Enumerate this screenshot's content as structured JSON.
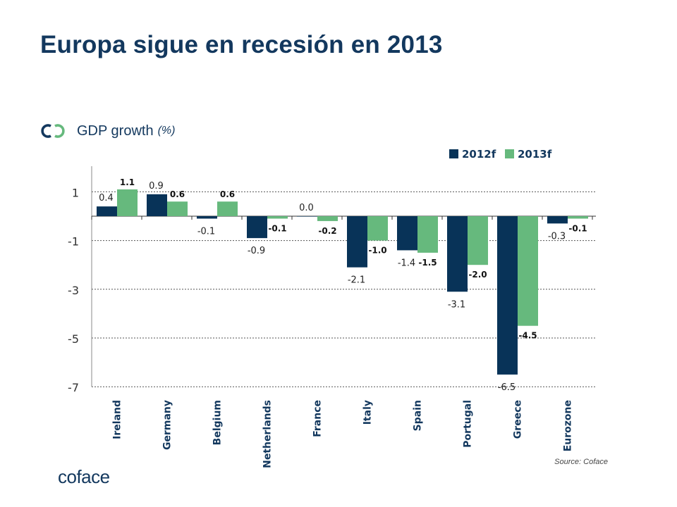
{
  "page": {
    "title": "Europa sigue en recesión en 2013",
    "subtitle": "GDP growth",
    "subtitle_unit": "(%)",
    "source": "Source: Coface",
    "logo_text": "coface"
  },
  "colors": {
    "title": "#13385e",
    "series_2012": "#083358",
    "series_2013": "#66b97d",
    "accent_icon_left": "#13385e",
    "accent_icon_right": "#66b97d"
  },
  "icons": {
    "subtitle_bullet": "coface-co-icon"
  },
  "chart_data": {
    "type": "bar",
    "title": "GDP growth (%)",
    "xlabel": "",
    "ylabel": "",
    "ylim": [
      -7,
      2.2
    ],
    "yticks": [
      1,
      -1,
      -3,
      -5,
      -7
    ],
    "grid": true,
    "legend_position": "top-right",
    "categories": [
      "Ireland",
      "Germany",
      "Belgium",
      "Netherlands",
      "France",
      "Italy",
      "Spain",
      "Portugal",
      "Greece",
      "Eurozone"
    ],
    "series": [
      {
        "name": "2012f",
        "color": "#083358",
        "values": [
          0.4,
          0.9,
          -0.1,
          -0.9,
          0.0,
          -2.1,
          -1.4,
          -3.1,
          -6.5,
          -0.3
        ],
        "labels": [
          "0.4",
          "0.9",
          "-0.1",
          "-0.9",
          "0.0",
          "-2.1",
          "-1.4",
          "-3.1",
          "-6.5",
          "-0.3"
        ]
      },
      {
        "name": "2013f",
        "color": "#66b97d",
        "values": [
          1.1,
          0.6,
          0.6,
          -0.1,
          -0.2,
          -1.0,
          -1.5,
          -2.0,
          -4.5,
          -0.1
        ],
        "labels": [
          "1.1",
          "0.6",
          "0.6",
          "-0.1",
          "-0.2",
          "-1.0",
          "-1.5",
          "-2.0",
          "-4.5",
          "-0.1"
        ]
      }
    ]
  }
}
